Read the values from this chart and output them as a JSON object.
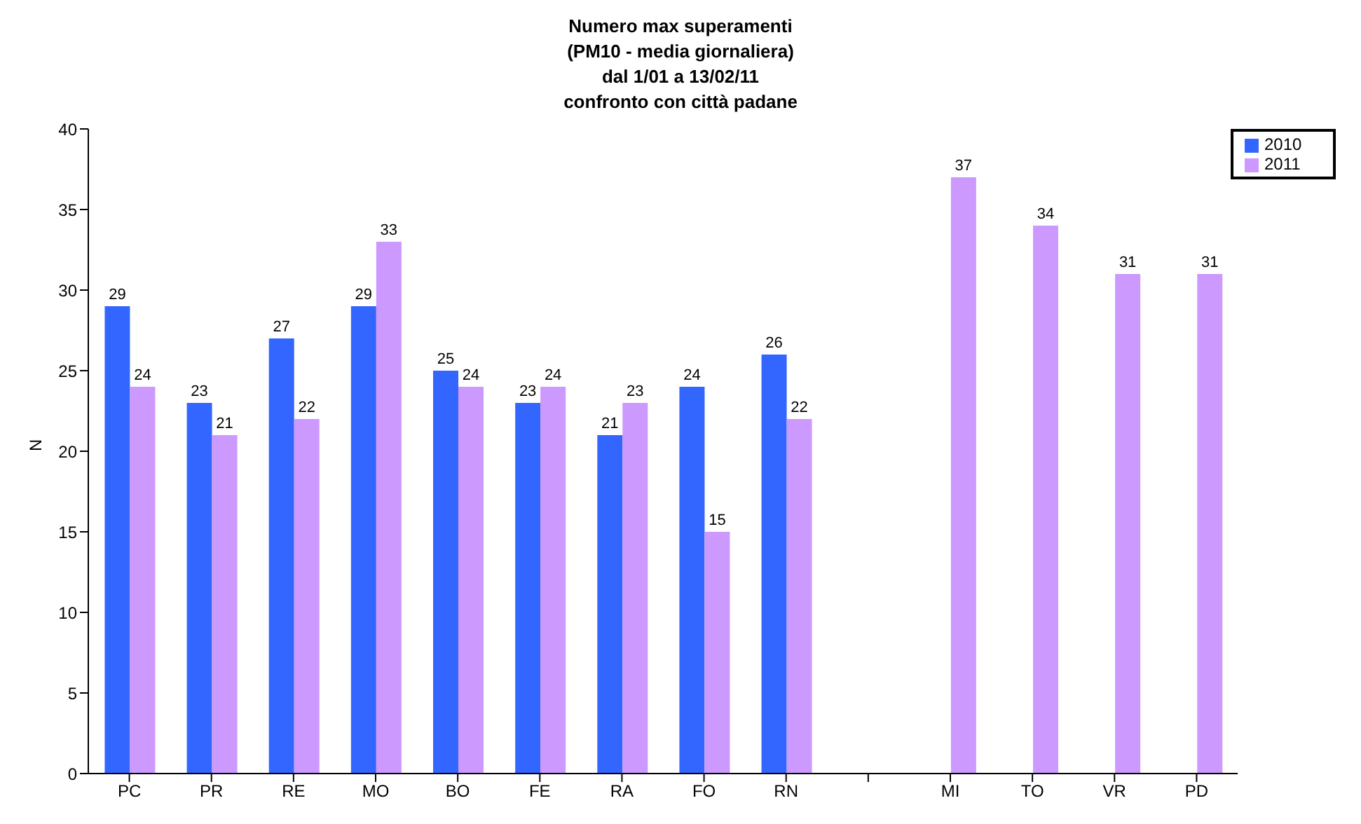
{
  "chart_data": {
    "type": "bar",
    "title": "Numero max superamenti\n(PM10 - media giornaliera)\ndal 1/01 a 13/02/11\nconfronto con città padane",
    "ylabel": "N",
    "categories": [
      "PC",
      "PR",
      "RE",
      "MO",
      "BO",
      "FE",
      "RA",
      "FO",
      "RN",
      null,
      "MI",
      "TO",
      "VR",
      "PD"
    ],
    "series": [
      {
        "name": "2010",
        "color": "#3366ff",
        "values": [
          29,
          23,
          27,
          29,
          25,
          23,
          21,
          24,
          26,
          null,
          null,
          null,
          null,
          null
        ]
      },
      {
        "name": "2011",
        "color": "#cc99ff",
        "values": [
          24,
          21,
          22,
          33,
          24,
          24,
          23,
          15,
          22,
          null,
          37,
          34,
          31,
          31
        ]
      }
    ],
    "ylim": [
      0,
      40
    ],
    "yticks": [
      0,
      5,
      10,
      15,
      20,
      25,
      30,
      35,
      40
    ],
    "grid": false,
    "legend": "top right",
    "data_labels": true
  }
}
